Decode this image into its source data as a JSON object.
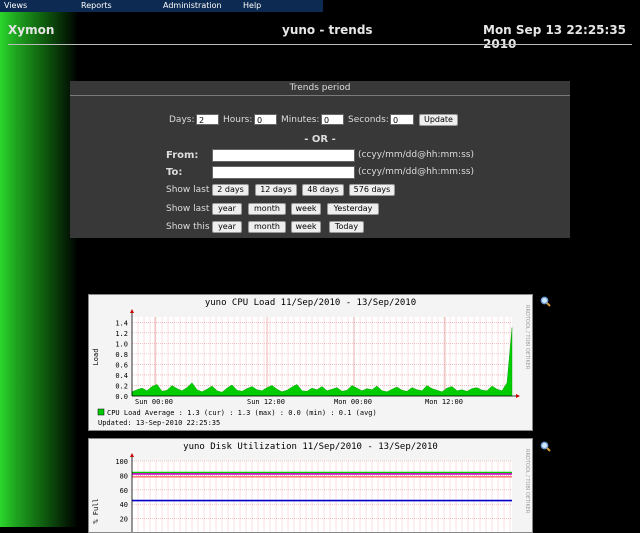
{
  "menu": {
    "items": [
      "Views",
      "Reports",
      "Administration",
      "Help"
    ]
  },
  "header": {
    "brand": "Xymon",
    "title": "yuno - trends",
    "datetime": "Mon Sep 13 22:25:35 2010"
  },
  "trends_period": {
    "title": "Trends period",
    "days_label": "Days:",
    "days_value": "2",
    "hours_label": "Hours:",
    "hours_value": "0",
    "minutes_label": "Minutes:",
    "minutes_value": "0",
    "seconds_label": "Seconds:",
    "seconds_value": "0",
    "update_label": "Update",
    "or_label": "- OR -",
    "from_label": "From:",
    "to_label": "To:",
    "date_format": "(ccyy/mm/dd@hh:mm:ss)",
    "show_last_label": "Show last",
    "show_this_label": "Show this",
    "last_hours_buttons": [
      "2 days",
      "12 days",
      "48 days",
      "576 days"
    ],
    "last_period_buttons": [
      "year",
      "month",
      "week",
      "Yesterday"
    ],
    "this_period_buttons": [
      "year",
      "month",
      "week",
      "Today"
    ]
  },
  "cpu_graph": {
    "title": "yuno CPU Load 11/Sep/2010 - 13/Sep/2010",
    "side_text": "RRDTOOL / TOBI OETIKER",
    "ylabel": "Load",
    "yticks": [
      "1.4",
      "1.2",
      "1.0",
      "0.8",
      "0.6",
      "0.4",
      "0.2",
      "0.0"
    ],
    "xticks": [
      "Sun 00:00",
      "Sun 12:00",
      "Mon 00:00",
      "Mon 12:00"
    ],
    "legend_line": "CPU Load Average   :   1.3 (cur)   :   1.3 (max)   :   0.0 (min)   :   0.1 (avg)",
    "updated": "Updated: 13-Sep-2010 22:25:35",
    "series_color": "#00cc00"
  },
  "disk_graph": {
    "title": "yuno Disk Utilization 11/Sep/2010 - 13/Sep/2010",
    "side_text": "RRDTOOL / TOBI OETIKER",
    "ylabel": "% Full",
    "yticks": [
      "100",
      "80",
      "60",
      "40",
      "20"
    ],
    "line_colors": [
      "#00cc00",
      "#cc00cc",
      "#ff8080",
      "#0000cc"
    ]
  },
  "chart_data": [
    {
      "type": "area",
      "title": "yuno CPU Load 11/Sep/2010 - 13/Sep/2010",
      "xlabel": "",
      "ylabel": "Load",
      "ylim": [
        0,
        1.5
      ],
      "x_ticks": [
        "Sun 00:00",
        "Sun 12:00",
        "Mon 00:00",
        "Mon 12:00"
      ],
      "series": [
        {
          "name": "CPU Load Average",
          "values": [
            0.08,
            0.12,
            0.15,
            0.1,
            0.18,
            0.22,
            0.09,
            0.11,
            0.2,
            0.14,
            0.1,
            0.16,
            0.25,
            0.12,
            0.08,
            0.13,
            0.19,
            0.1,
            0.07,
            0.15,
            0.21,
            0.11,
            0.09,
            0.14,
            0.18,
            0.12,
            0.1,
            0.16,
            0.2,
            0.13,
            0.08,
            0.11,
            0.17,
            0.22,
            0.1,
            0.09,
            0.15,
            0.12,
            0.18,
            0.1,
            0.13,
            0.16,
            0.09,
            0.11,
            0.2,
            0.15,
            0.1,
            0.14,
            0.12,
            0.19,
            0.1,
            0.08,
            0.13,
            0.17,
            0.11,
            0.09,
            0.16,
            0.12,
            0.1,
            0.2,
            0.14,
            0.11,
            0.08,
            0.15,
            0.18,
            0.1,
            0.12,
            0.09,
            0.14,
            0.16,
            0.11,
            0.1,
            0.19,
            0.13,
            0.1,
            0.25,
            1.3
          ]
        }
      ],
      "grid": true
    },
    {
      "type": "line",
      "title": "yuno Disk Utilization 11/Sep/2010 - 13/Sep/2010",
      "ylabel": "% Full",
      "ylim": [
        0,
        100
      ],
      "series": [
        {
          "values": [
            84,
            84
          ]
        },
        {
          "values": [
            82,
            82
          ]
        },
        {
          "values": [
            78,
            78
          ]
        },
        {
          "values": [
            45,
            45
          ]
        }
      ],
      "grid": true
    }
  ]
}
